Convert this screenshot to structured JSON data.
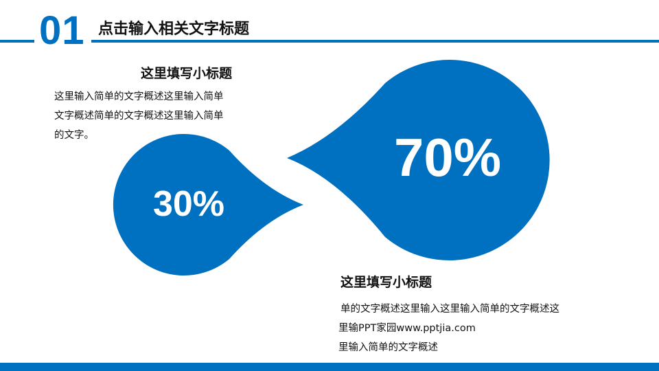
{
  "header": {
    "number": "01",
    "title": "点击输入相关文字标题"
  },
  "colors": {
    "accent": "#0070c0"
  },
  "block_left": {
    "subtitle": "这里填写小标题",
    "lines": [
      "这里输入简单的文字概述这里输入简单",
      "文字概述简单的文字概述这里输入简单",
      "的文字。"
    ]
  },
  "block_right": {
    "subtitle": "这里填写小标题",
    "lines": [
      "单的文字概述这里输入这里输入简单的文字概述这",
      "里输PPT家园www.pptjia.com",
      "里输入简单的文字概述"
    ]
  },
  "drops": {
    "small": "30%",
    "large": "70%"
  }
}
